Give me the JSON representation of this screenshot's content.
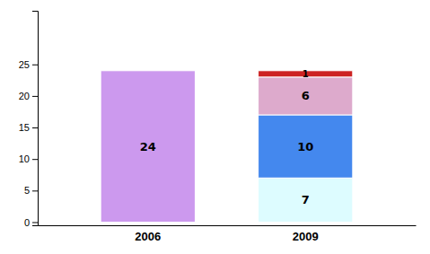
{
  "chart_data": {
    "type": "bar",
    "stacked": true,
    "data_labels": true,
    "grid": false,
    "categories": [
      "2006",
      "2009"
    ],
    "series": [
      {
        "values": [
          24,
          7
        ],
        "colors": [
          "#CC99EE",
          "#DDFCFF"
        ]
      },
      {
        "values": [
          null,
          10
        ],
        "color": "#4488EE"
      },
      {
        "values": [
          null,
          6
        ],
        "color": "#DDAACC"
      },
      {
        "values": [
          null,
          1
        ],
        "color": "#CC2222"
      }
    ],
    "ylim": [
      -0.5,
      33.5
    ],
    "yticks": [
      0,
      5,
      10,
      15,
      20,
      25
    ]
  }
}
